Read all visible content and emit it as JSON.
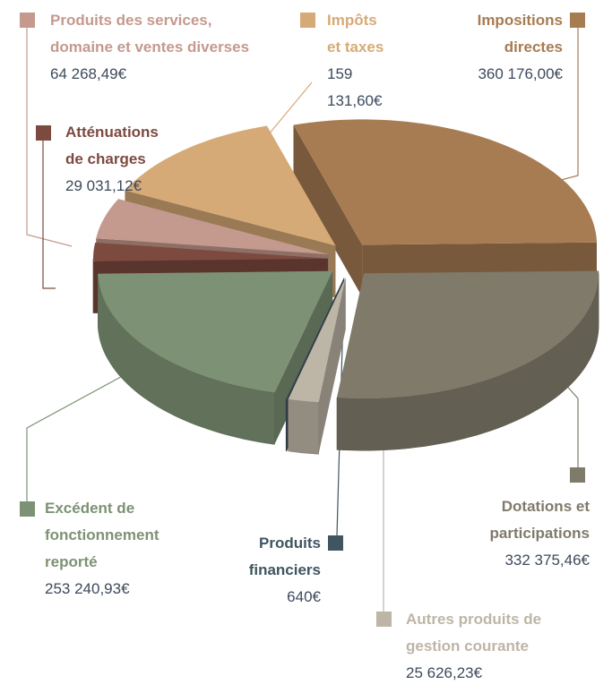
{
  "chart_data": {
    "type": "pie",
    "categories": [
      "Impositions directes",
      "Dotations et participations",
      "Autres produits de gestion courante",
      "Produits financiers",
      "Excédent de fonctionnement reporté",
      "Atténuations de charges",
      "Produits des services, domaine et ventes diverses",
      "Impôts et taxes"
    ],
    "values": [
      360176.0,
      332375.46,
      25626.23,
      640,
      253240.93,
      29031.12,
      64268.49,
      159131.6
    ],
    "value_labels": [
      "360 176,00€",
      "332 375,46€",
      "25 626,23€",
      "640€",
      "253 240,93€",
      "29 031,12€",
      "64 268,49€",
      "159 131,60€"
    ],
    "colors": [
      "#a77c52",
      "#807a6a",
      "#bdb5a6",
      "#3f5560",
      "#7d9274",
      "#7d4a3f",
      "#c49a8e",
      "#d6aa76"
    ]
  }
}
